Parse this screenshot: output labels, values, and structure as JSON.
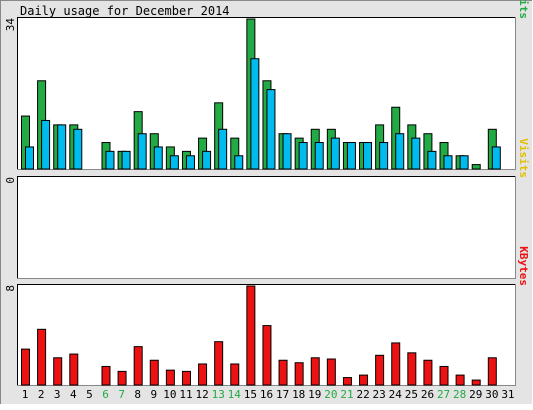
{
  "title": "Daily usage for December 2014",
  "colors": {
    "background": "#e4e4e4",
    "panel": "#ffffff",
    "hits": "#22aa44",
    "files": "#00bbee",
    "pages": "#00aadd",
    "visits": "#e0c000",
    "kbytes": "#ee1111",
    "weekend_label": "#22aa44",
    "weekday_label": "#000000"
  },
  "chart_data": [
    {
      "type": "bar",
      "panel": "top",
      "title": "Daily usage for December 2014",
      "y_max_label": "34",
      "ylim": [
        0,
        34
      ],
      "right_label_parts": [
        {
          "text": "Pages",
          "color_key": "pages"
        },
        {
          "text": "/",
          "color_key": "weekday_label"
        },
        {
          "text": "Files",
          "color_key": "files"
        },
        {
          "text": "/",
          "color_key": "weekday_label"
        },
        {
          "text": "Hits",
          "color_key": "hits"
        }
      ],
      "categories": [
        "1",
        "2",
        "3",
        "4",
        "5",
        "6",
        "7",
        "8",
        "9",
        "10",
        "11",
        "12",
        "13",
        "14",
        "15",
        "16",
        "17",
        "18",
        "19",
        "20",
        "21",
        "22",
        "23",
        "24",
        "25",
        "26",
        "27",
        "28",
        "29",
        "30",
        "31"
      ],
      "series": [
        {
          "name": "Hits",
          "color_key": "hits",
          "values": [
            12,
            20,
            10,
            10,
            0,
            6,
            4,
            13,
            8,
            5,
            4,
            7,
            15,
            7,
            34,
            20,
            8,
            7,
            9,
            9,
            6,
            6,
            10,
            14,
            10,
            8,
            6,
            3,
            1,
            9,
            0
          ]
        },
        {
          "name": "Files",
          "color_key": "files",
          "values": [
            5,
            11,
            10,
            9,
            0,
            4,
            4,
            8,
            5,
            3,
            3,
            4,
            9,
            3,
            25,
            18,
            8,
            6,
            6,
            7,
            6,
            6,
            6,
            8,
            7,
            4,
            3,
            3,
            0,
            5,
            0
          ]
        }
      ]
    },
    {
      "type": "bar",
      "panel": "middle",
      "y_max_label": "0",
      "ylim": [
        0,
        1
      ],
      "right_label": "Visits",
      "categories": [
        "1",
        "2",
        "3",
        "4",
        "5",
        "6",
        "7",
        "8",
        "9",
        "10",
        "11",
        "12",
        "13",
        "14",
        "15",
        "16",
        "17",
        "18",
        "19",
        "20",
        "21",
        "22",
        "23",
        "24",
        "25",
        "26",
        "27",
        "28",
        "29",
        "30",
        "31"
      ],
      "series": [
        {
          "name": "Visits",
          "color_key": "visits",
          "values": [
            0,
            0,
            0,
            0,
            0,
            0,
            0,
            0,
            0,
            0,
            0,
            0,
            0,
            0,
            0,
            0,
            0,
            0,
            0,
            0,
            0,
            0,
            0,
            0,
            0,
            0,
            0,
            0,
            0,
            0,
            0
          ]
        }
      ]
    },
    {
      "type": "bar",
      "panel": "bottom",
      "y_max_label": "8",
      "ylim": [
        0,
        8
      ],
      "right_label": "KBytes",
      "categories": [
        "1",
        "2",
        "3",
        "4",
        "5",
        "6",
        "7",
        "8",
        "9",
        "10",
        "11",
        "12",
        "13",
        "14",
        "15",
        "16",
        "17",
        "18",
        "19",
        "20",
        "21",
        "22",
        "23",
        "24",
        "25",
        "26",
        "27",
        "28",
        "29",
        "30",
        "31"
      ],
      "weekend_days": [
        "6",
        "7",
        "13",
        "14",
        "20",
        "21",
        "27",
        "28"
      ],
      "series": [
        {
          "name": "KBytes",
          "color_key": "kbytes",
          "values": [
            2.9,
            4.5,
            2.2,
            2.5,
            0,
            1.5,
            1.1,
            3.1,
            2.0,
            1.2,
            1.1,
            1.7,
            3.5,
            1.7,
            8.0,
            4.8,
            2.0,
            1.8,
            2.2,
            2.1,
            0.6,
            0.8,
            2.4,
            3.4,
            2.6,
            2.0,
            1.5,
            0.8,
            0.4,
            2.2,
            0
          ]
        }
      ]
    }
  ]
}
